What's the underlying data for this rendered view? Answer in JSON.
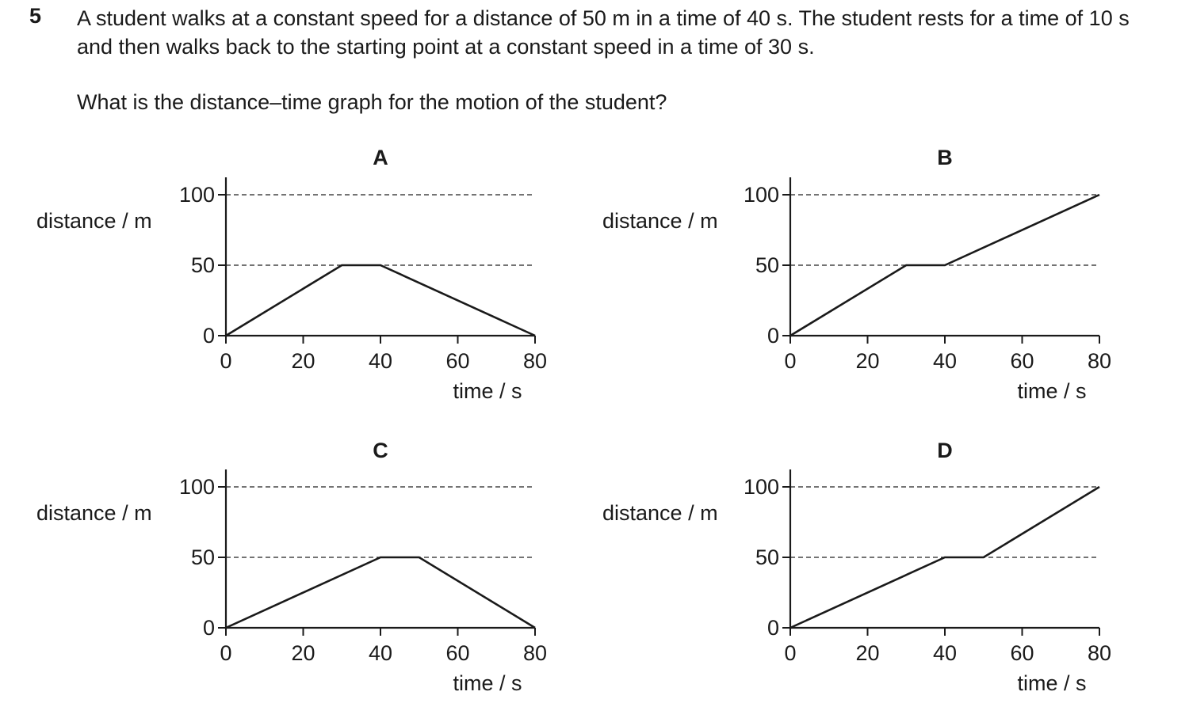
{
  "question": {
    "number": "5",
    "text": "A student walks at a constant speed for a distance of 50 m in a time of 40 s. The student rests for a time of 10 s and then walks back to the starting point at a constant speed in a time of 30 s.",
    "prompt": "What is the distance–time graph for the motion of the student?"
  },
  "chart_data": [
    {
      "type": "line",
      "label": "A",
      "xlabel": "time / s",
      "ylabel": "distance / m",
      "xlim": [
        0,
        80
      ],
      "ylim": [
        0,
        100
      ],
      "xticks": [
        0,
        20,
        40,
        60,
        80
      ],
      "yticks": [
        0,
        50,
        100
      ],
      "dashed_gridlines": [
        50,
        100
      ],
      "points": [
        [
          0,
          0
        ],
        [
          30,
          50
        ],
        [
          40,
          50
        ],
        [
          80,
          0
        ]
      ]
    },
    {
      "type": "line",
      "label": "B",
      "xlabel": "time / s",
      "ylabel": "distance / m",
      "xlim": [
        0,
        80
      ],
      "ylim": [
        0,
        100
      ],
      "xticks": [
        0,
        20,
        40,
        60,
        80
      ],
      "yticks": [
        0,
        50,
        100
      ],
      "dashed_gridlines": [
        50,
        100
      ],
      "points": [
        [
          0,
          0
        ],
        [
          30,
          50
        ],
        [
          40,
          50
        ],
        [
          80,
          100
        ]
      ]
    },
    {
      "type": "line",
      "label": "C",
      "xlabel": "time / s",
      "ylabel": "distance / m",
      "xlim": [
        0,
        80
      ],
      "ylim": [
        0,
        100
      ],
      "xticks": [
        0,
        20,
        40,
        60,
        80
      ],
      "yticks": [
        0,
        50,
        100
      ],
      "dashed_gridlines": [
        50,
        100
      ],
      "points": [
        [
          0,
          0
        ],
        [
          40,
          50
        ],
        [
          50,
          50
        ],
        [
          80,
          0
        ]
      ]
    },
    {
      "type": "line",
      "label": "D",
      "xlabel": "time / s",
      "ylabel": "distance / m",
      "xlim": [
        0,
        80
      ],
      "ylim": [
        0,
        100
      ],
      "xticks": [
        0,
        20,
        40,
        60,
        80
      ],
      "yticks": [
        0,
        50,
        100
      ],
      "dashed_gridlines": [
        50,
        100
      ],
      "points": [
        [
          0,
          0
        ],
        [
          40,
          50
        ],
        [
          50,
          50
        ],
        [
          80,
          100
        ]
      ]
    }
  ]
}
